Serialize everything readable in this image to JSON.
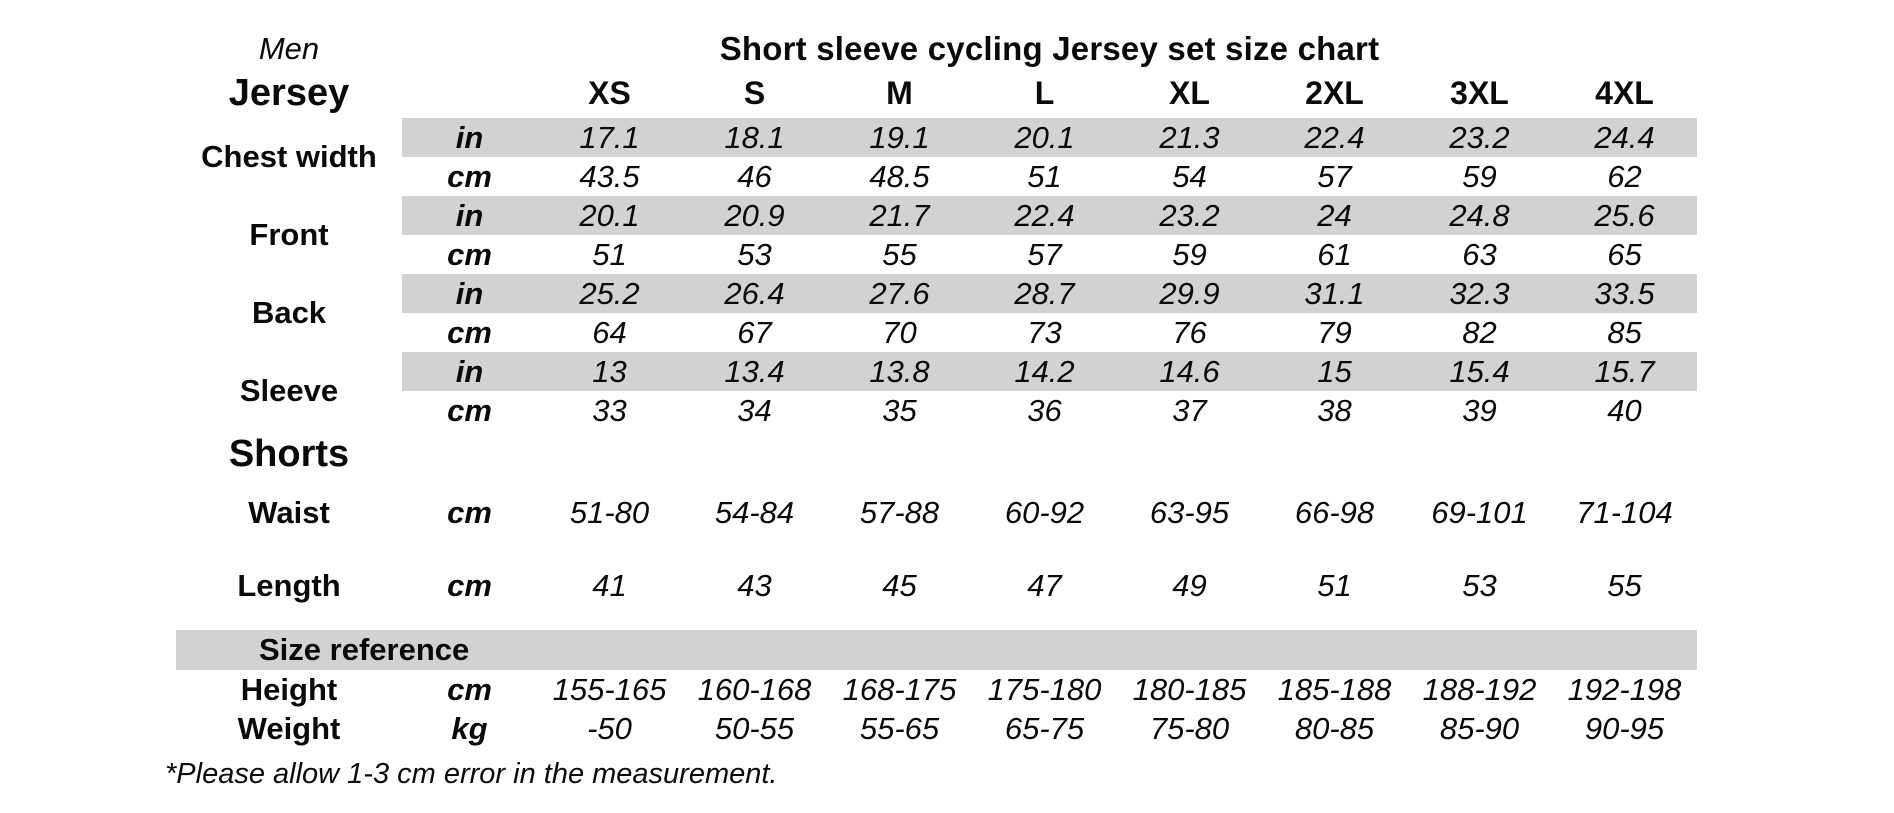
{
  "page": {
    "gender_label": "Men",
    "title": "Short sleeve cycling Jersey set size chart",
    "footnote": "*Please allow 1-3 cm error in the measurement.",
    "band_color": "#d2d2d2",
    "text_color": "#0a0a0a"
  },
  "sizes": [
    "XS",
    "S",
    "M",
    "L",
    "XL",
    "2XL",
    "3XL",
    "4XL"
  ],
  "jersey": {
    "section_label": "Jersey",
    "rows": [
      {
        "label": "Chest width",
        "in": {
          "unit": "in",
          "shaded": true,
          "values": [
            "17.1",
            "18.1",
            "19.1",
            "20.1",
            "21.3",
            "22.4",
            "23.2",
            "24.4"
          ]
        },
        "cm": {
          "unit": "cm",
          "shaded": false,
          "values": [
            "43.5",
            "46",
            "48.5",
            "51",
            "54",
            "57",
            "59",
            "62"
          ]
        }
      },
      {
        "label": "Front",
        "in": {
          "unit": "in",
          "shaded": true,
          "values": [
            "20.1",
            "20.9",
            "21.7",
            "22.4",
            "23.2",
            "24",
            "24.8",
            "25.6"
          ]
        },
        "cm": {
          "unit": "cm",
          "shaded": false,
          "values": [
            "51",
            "53",
            "55",
            "57",
            "59",
            "61",
            "63",
            "65"
          ]
        }
      },
      {
        "label": "Back",
        "in": {
          "unit": "in",
          "shaded": true,
          "values": [
            "25.2",
            "26.4",
            "27.6",
            "28.7",
            "29.9",
            "31.1",
            "32.3",
            "33.5"
          ]
        },
        "cm": {
          "unit": "cm",
          "shaded": false,
          "values": [
            "64",
            "67",
            "70",
            "73",
            "76",
            "79",
            "82",
            "85"
          ]
        }
      },
      {
        "label": "Sleeve",
        "in": {
          "unit": "in",
          "shaded": true,
          "values": [
            "13",
            "13.4",
            "13.8",
            "14.2",
            "14.6",
            "15",
            "15.4",
            "15.7"
          ]
        },
        "cm": {
          "unit": "cm",
          "shaded": false,
          "values": [
            "33",
            "34",
            "35",
            "36",
            "37",
            "38",
            "39",
            "40"
          ]
        }
      }
    ]
  },
  "shorts": {
    "section_label": "Shorts",
    "rows": [
      {
        "label": "Waist",
        "unit": "cm",
        "values": [
          "51-80",
          "54-84",
          "57-88",
          "60-92",
          "63-95",
          "66-98",
          "69-101",
          "71-104"
        ]
      },
      {
        "label": "Length",
        "unit": "cm",
        "values": [
          "41",
          "43",
          "45",
          "47",
          "49",
          "51",
          "53",
          "55"
        ]
      }
    ]
  },
  "size_reference": {
    "section_label": "Size reference",
    "rows": [
      {
        "label": "Height",
        "unit": "cm",
        "values": [
          "155-165",
          "160-168",
          "168-175",
          "175-180",
          "180-185",
          "185-188",
          "188-192",
          "192-198"
        ]
      },
      {
        "label": "Weight",
        "unit": "kg",
        "values": [
          "-50",
          "50-55",
          "55-65",
          "65-75",
          "75-80",
          "80-85",
          "85-90",
          "90-95"
        ]
      }
    ]
  }
}
